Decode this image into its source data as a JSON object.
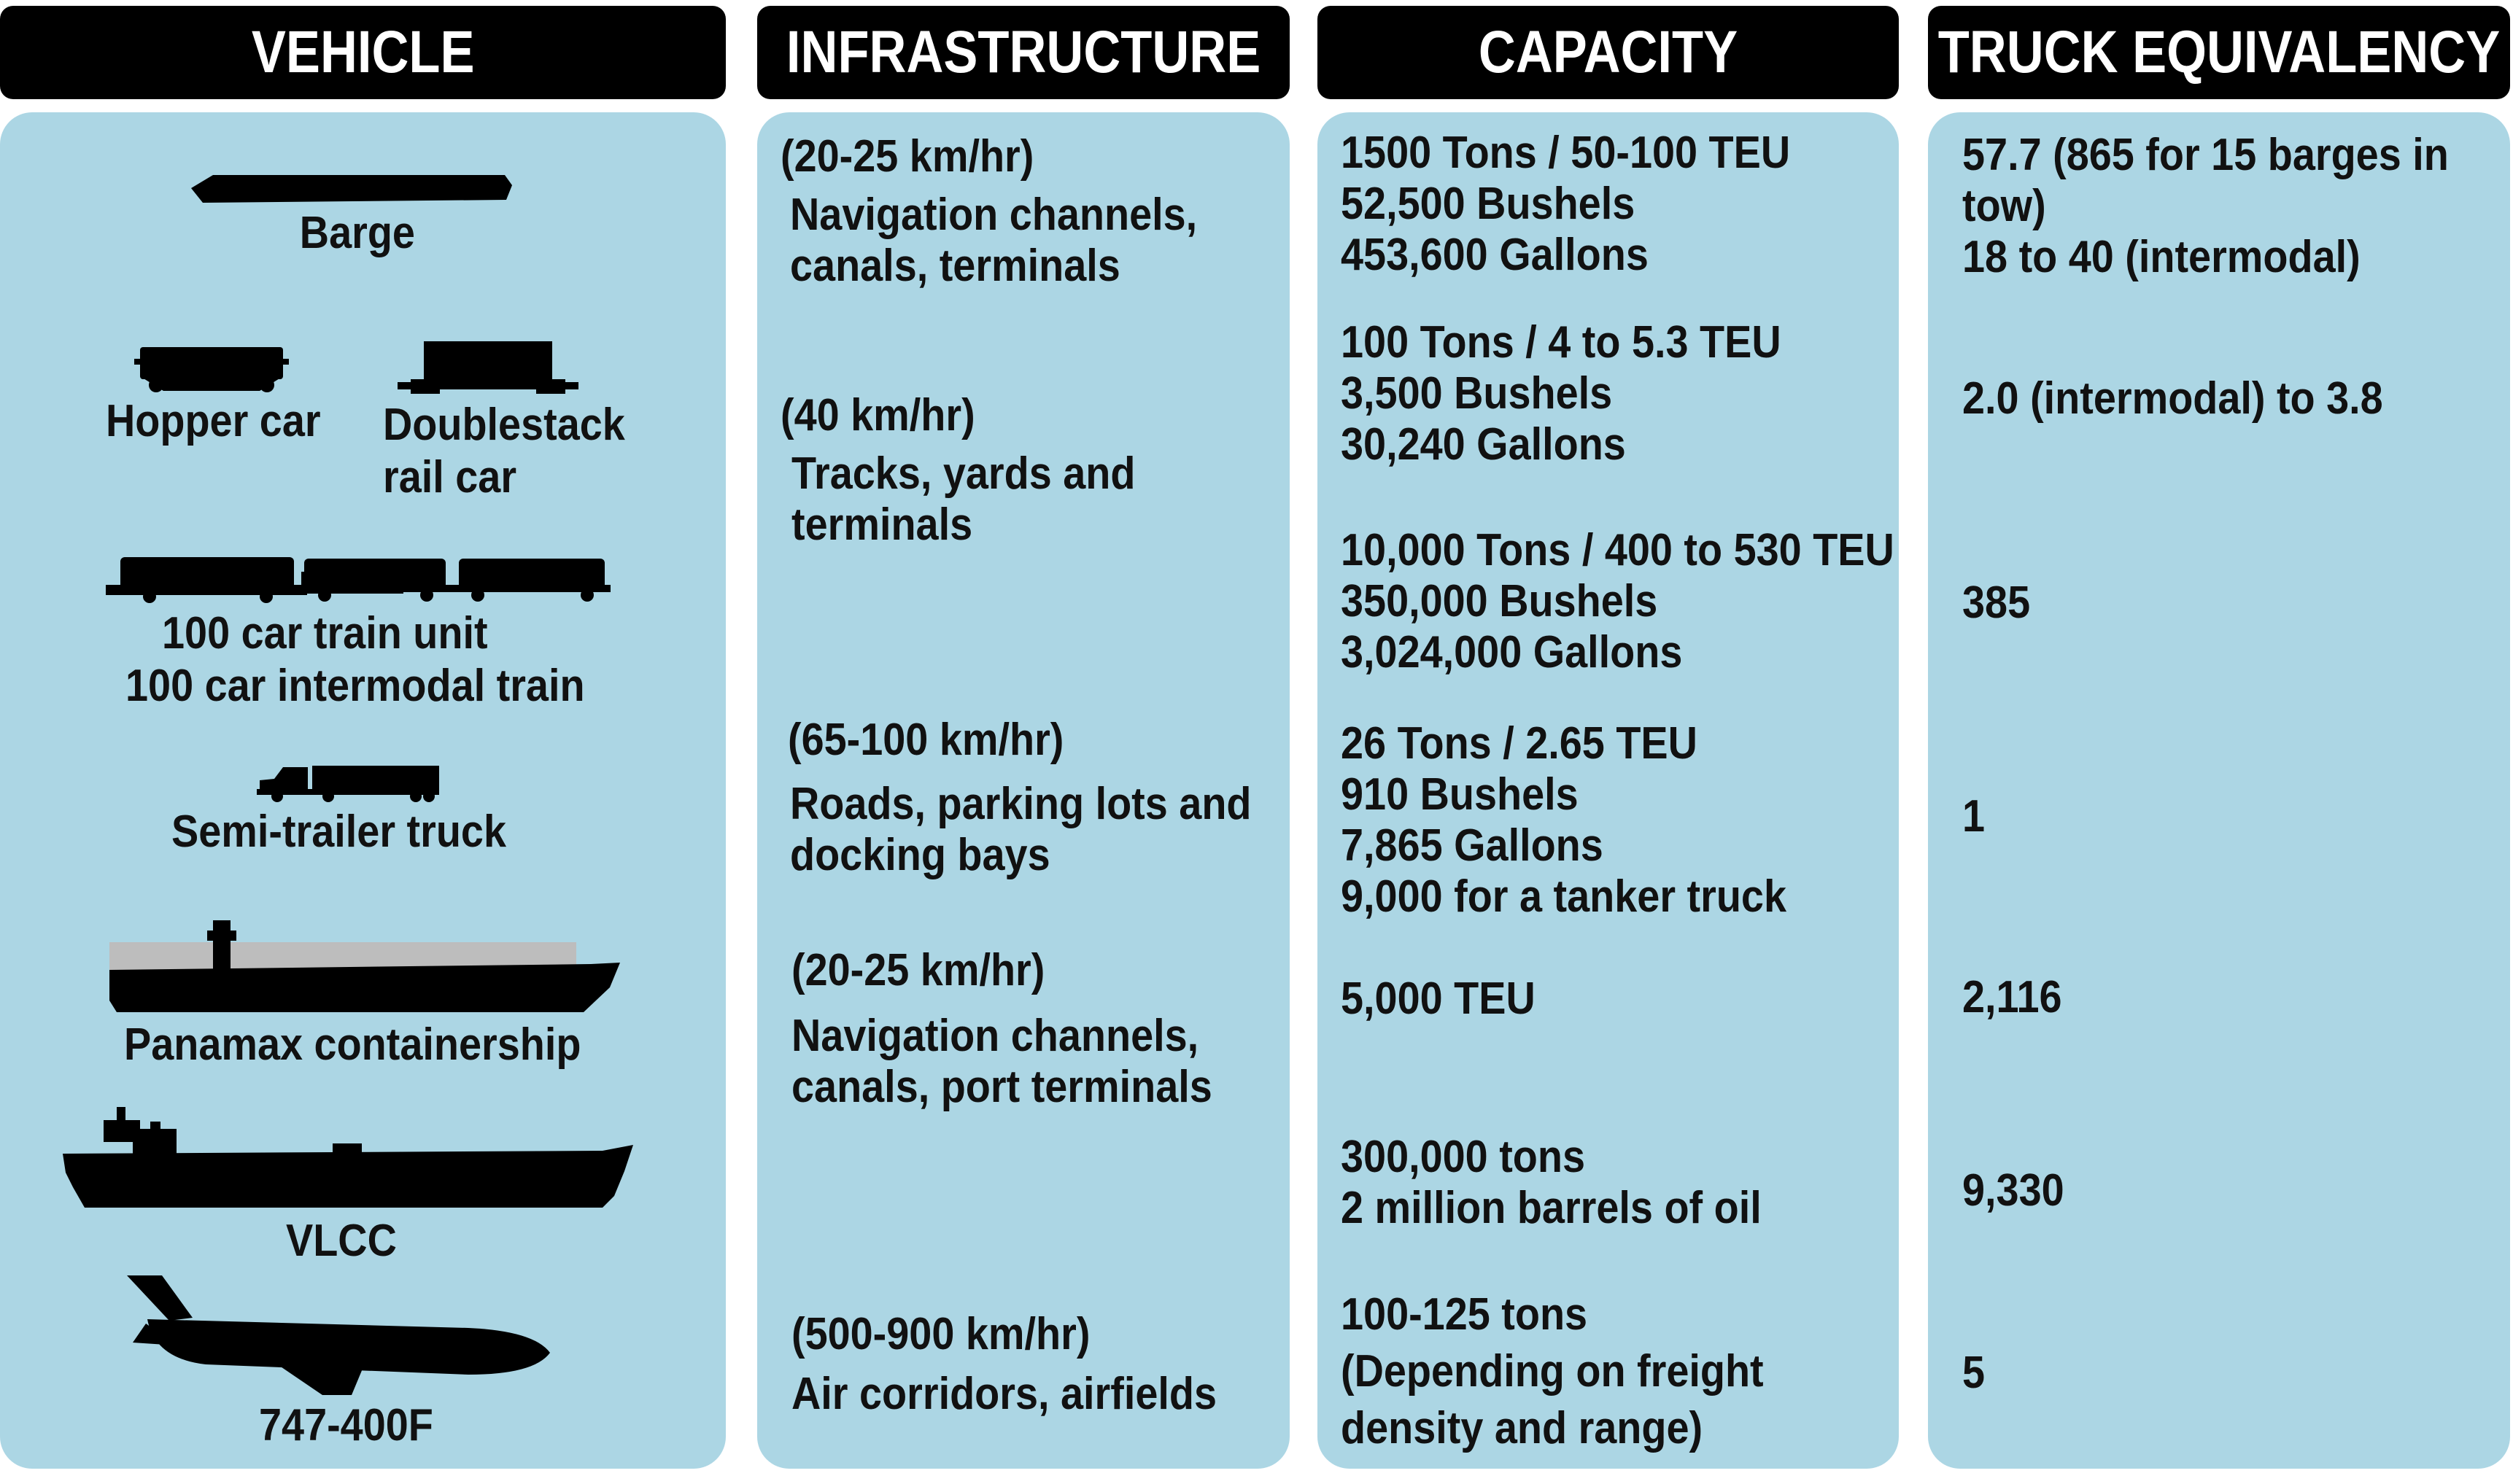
{
  "headers": {
    "vehicle": "VEHICLE",
    "infrastructure": "INFRASTRUCTURE",
    "capacity": "CAPACITY",
    "truck_equivalency": "TRUCK EQUIVALENCY"
  },
  "vehicles": {
    "barge": "Barge",
    "hopper_car": "Hopper car",
    "doublestack_line1": "Doublestack",
    "doublestack_line2": "rail car",
    "train_line1": "100 car train unit",
    "train_line2": "100 car intermodal train",
    "semi": "Semi-trailer truck",
    "panamax": "Panamax containership",
    "vlcc": "VLCC",
    "jet": "747-400F"
  },
  "infrastructure": {
    "barge_speed": "(20-25 km/hr)",
    "barge_line1": "Navigation channels,",
    "barge_line2": "canals, terminals",
    "rail_speed": "(40 km/hr)",
    "rail_line1": "Tracks, yards and",
    "rail_line2": "terminals",
    "road_speed": "(65-100 km/hr)",
    "road_line1": "Roads, parking lots and",
    "road_line2": "docking bays",
    "ship_speed": "(20-25 km/hr)",
    "ship_line1": "Navigation channels,",
    "ship_line2": "canals, port terminals",
    "air_speed": "(500-900 km/hr)",
    "air_line1": "Air corridors, airfields"
  },
  "capacity": {
    "barge": [
      "1500 Tons / 50-100 TEU",
      "52,500 Bushels",
      "453,600 Gallons"
    ],
    "railcar": [
      "100 Tons / 4 to 5.3 TEU",
      "3,500 Bushels",
      "30,240 Gallons"
    ],
    "train": [
      "10,000 Tons / 400 to 530 TEU",
      "350,000 Bushels",
      "3,024,000 Gallons"
    ],
    "truck": [
      "26 Tons / 2.65 TEU",
      "910 Bushels",
      "7,865 Gallons",
      "9,000 for a tanker truck"
    ],
    "panamax": [
      "5,000 TEU"
    ],
    "vlcc": [
      "300,000 tons",
      "2 million barrels of oil"
    ],
    "jet": [
      "100-125 tons",
      "(Depending on freight",
      "density and range)"
    ]
  },
  "equivalency": {
    "barge_line1": "57.7 (865 for 15 barges in",
    "barge_line2": "tow)",
    "barge_line3": "18 to 40 (intermodal)",
    "railcar": "2.0 (intermodal) to 3.8",
    "train": "385",
    "truck": "1",
    "panamax": "2,116",
    "vlcc": "9,330",
    "jet": "5"
  },
  "colors": {
    "header_bg": "#000000",
    "header_text": "#ffffff",
    "panel_bg": "#acd6e4",
    "ship_cargo": "#bdbdbd"
  },
  "icons": [
    "barge-icon",
    "hopper-car-icon",
    "doublestack-car-icon",
    "train-icon",
    "semi-truck-icon",
    "containership-icon",
    "tanker-icon",
    "cargo-jet-icon"
  ]
}
